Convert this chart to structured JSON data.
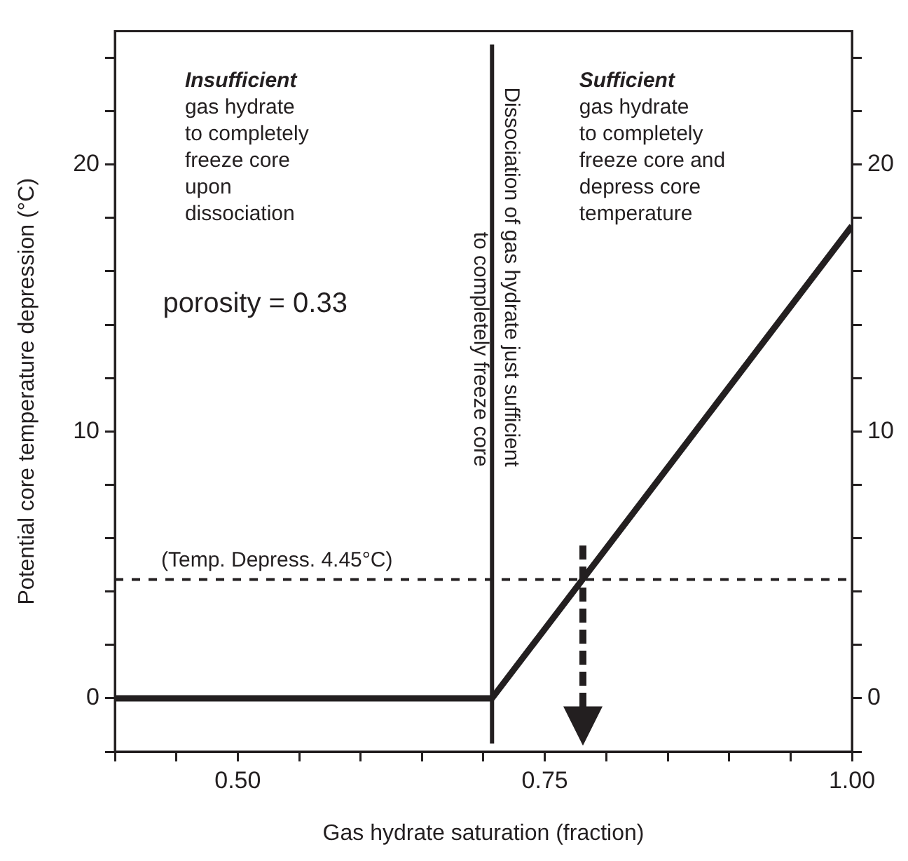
{
  "chart_data": {
    "type": "line",
    "xlabel": "Gas hydrate saturation (fraction)",
    "ylabel": "Potential core temperature depression (°C)",
    "x": [
      0.4,
      0.707,
      1.0
    ],
    "series": [
      {
        "color": "#231f20",
        "values": [
          0,
          0,
          17.7
        ]
      }
    ],
    "xlim": [
      0.4,
      1.0
    ],
    "xticks": [
      {
        "value": 0.4,
        "label": null
      },
      {
        "value": 0.45,
        "label": null
      },
      {
        "value": 0.5,
        "label": "0.50"
      },
      {
        "value": 0.55,
        "label": null
      },
      {
        "value": 0.6,
        "label": null
      },
      {
        "value": 0.65,
        "label": null
      },
      {
        "value": 0.7,
        "label": null
      },
      {
        "value": 0.75,
        "label": "0.75"
      },
      {
        "value": 0.8,
        "label": null
      },
      {
        "value": 0.85,
        "label": null
      },
      {
        "value": 0.9,
        "label": null
      },
      {
        "value": 0.95,
        "label": null
      },
      {
        "value": 1.0,
        "label": "1.00"
      }
    ],
    "ylim": [
      -2,
      25
    ],
    "yticks": [
      {
        "value": -2,
        "label": null
      },
      0,
      {
        "value": 2,
        "label": null
      },
      {
        "value": 4,
        "label": null
      },
      {
        "value": 6,
        "label": null
      },
      {
        "value": 8,
        "label": null
      },
      10,
      {
        "value": 12,
        "label": null
      },
      {
        "value": 14,
        "label": null
      },
      {
        "value": 16,
        "label": null
      },
      {
        "value": 18,
        "label": null
      },
      20,
      {
        "value": 22,
        "label": null
      },
      {
        "value": 24,
        "label": null
      }
    ],
    "y2lim": [
      -2,
      25
    ],
    "y2ticks": [
      {
        "value": -2,
        "label": null
      },
      0,
      {
        "value": 2,
        "label": null
      },
      {
        "value": 4,
        "label": null
      },
      {
        "value": 6,
        "label": null
      },
      {
        "value": 8,
        "label": null
      },
      10,
      {
        "value": 12,
        "label": null
      },
      {
        "value": 14,
        "label": null
      },
      {
        "value": 16,
        "label": null
      },
      {
        "value": 18,
        "label": null
      },
      20,
      {
        "value": 22,
        "label": null
      },
      {
        "value": 24,
        "label": null
      }
    ],
    "ref_lines": [
      {
        "axis": "x",
        "value": 0.707,
        "label": "Dissociation of gas hydrate just sufficient\nto completely freeze core",
        "color": "#231f20",
        "line_style": "solid"
      },
      {
        "axis": "y",
        "value": 4.45,
        "label": "(Temp. Depress. 4.45°C)",
        "color": "#231f20",
        "line_style": "dashed"
      }
    ],
    "annotations": [
      "Insufficient\ngas hydrate\nto completely\nfreeze core\nupon\ndissociation",
      "Sufficient\ngas hydrate\nto completely\nfreeze core and\ndepress core\ntemperature",
      "porosity = 0.33"
    ],
    "grid": false,
    "legend": false,
    "marker": "none",
    "line_style": "solid"
  }
}
